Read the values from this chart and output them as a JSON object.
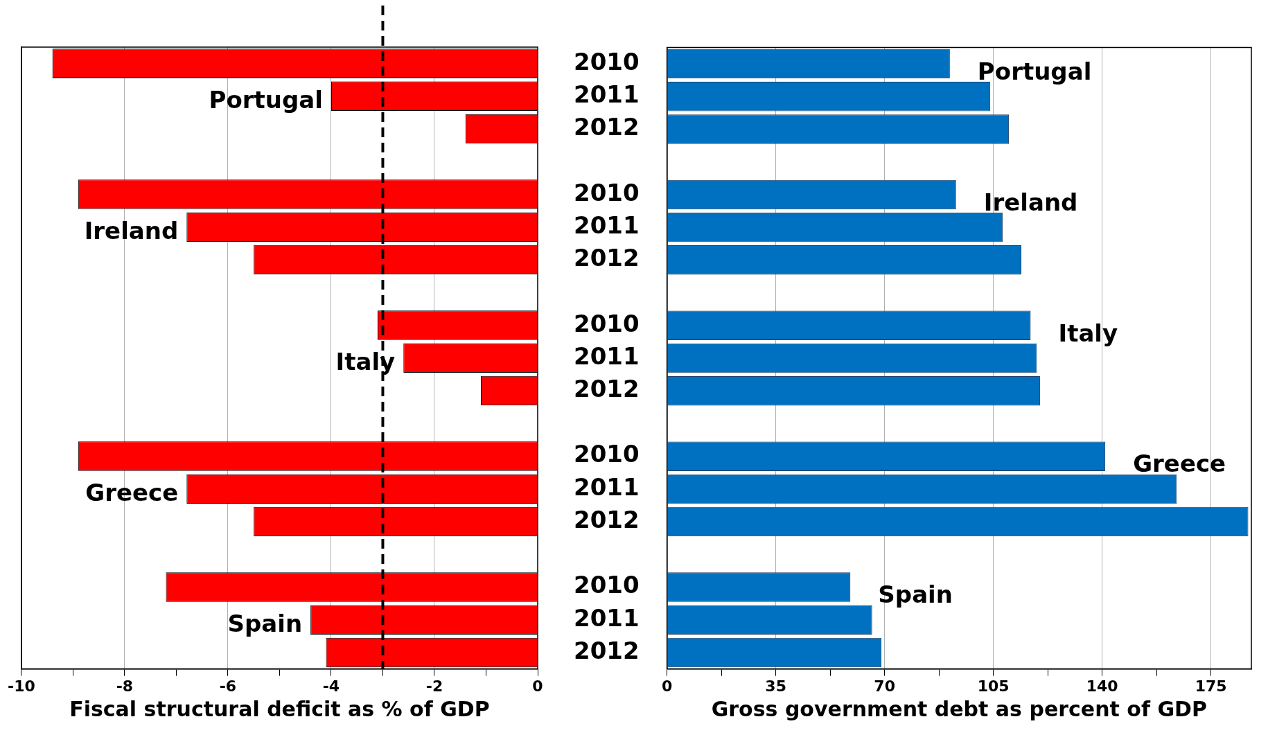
{
  "chart_data": [
    {
      "type": "bar",
      "orientation": "horizontal",
      "categories": [
        "2010",
        "2011",
        "2012",
        null,
        "2010",
        "2011",
        "2012",
        null,
        "2010",
        "2011",
        "2012",
        null,
        "2010",
        "2011",
        "2012",
        null,
        "2010",
        "2011",
        "2012"
      ],
      "values": [
        -9.4,
        -4.0,
        -1.4,
        null,
        -8.9,
        -6.8,
        -5.5,
        null,
        -3.1,
        -2.6,
        -1.1,
        null,
        -8.9,
        -6.8,
        -5.5,
        null,
        -7.2,
        -4.4,
        -4.1
      ],
      "color": "#ff0000",
      "xlim": [
        -10,
        0
      ],
      "xticks": [
        -10,
        {
          "value": -9,
          "label": null
        },
        -8,
        {
          "value": -7,
          "label": null
        },
        -6,
        {
          "value": -5,
          "label": null
        },
        -4,
        {
          "value": -3,
          "label": null
        },
        -2,
        {
          "value": -1,
          "label": null
        },
        0
      ],
      "xlabel": "Fiscal structural deficit as % of GDP",
      "grid": "x",
      "tick_labels": "x",
      "ref_lines": [
        {
          "axis": "x",
          "value": -3,
          "line_style": "dashed",
          "color": "#000000"
        }
      ],
      "annotations": [
        "Portugal",
        "Ireland",
        "Italy",
        "Greece",
        "Spain"
      ]
    },
    {
      "type": "bar",
      "orientation": "horizontal",
      "categories": [
        "2010",
        "2011",
        "2012",
        null,
        "2010",
        "2011",
        "2012",
        null,
        "2010",
        "2011",
        "2012",
        null,
        "2010",
        "2011",
        "2012",
        null,
        "2010",
        "2011",
        "2012"
      ],
      "values": [
        91,
        104,
        110,
        null,
        93,
        108,
        114,
        null,
        117,
        119,
        120,
        null,
        141,
        164,
        187,
        null,
        59,
        66,
        69
      ],
      "color": "#0070c0",
      "xlim": [
        0,
        188
      ],
      "xticks": [
        0,
        {
          "value": 17.5,
          "label": null
        },
        35,
        {
          "value": 52.5,
          "label": null
        },
        70,
        {
          "value": 87.5,
          "label": null
        },
        105,
        {
          "value": 122.5,
          "label": null
        },
        140,
        {
          "value": 157.5,
          "label": null
        },
        175
      ],
      "xlabel": "Gross government debt as percent of GDP",
      "grid": "x",
      "annotations": [
        "Portugal",
        "Ireland",
        "Italy",
        "Greece",
        "Spain"
      ]
    }
  ]
}
